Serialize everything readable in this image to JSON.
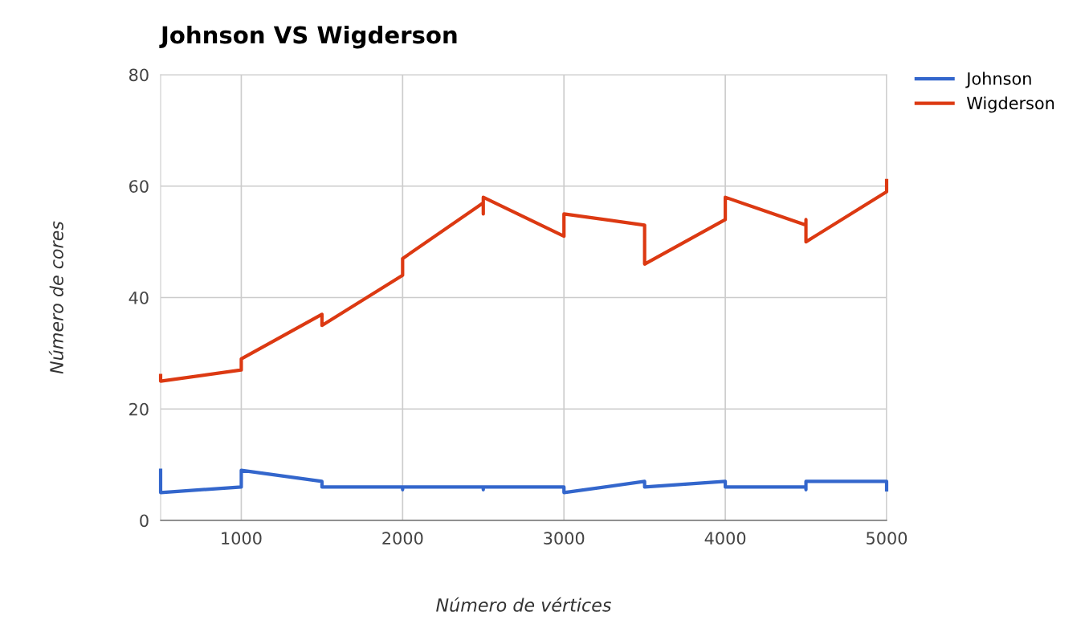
{
  "chart_data": {
    "type": "line",
    "title": "Johnson VS Wigderson",
    "xlabel": "Número de vértices",
    "ylabel": "Número de cores",
    "series": [
      {
        "name": "Johnson",
        "color": "#3366cc",
        "x": [
          500,
          500,
          1000,
          1000,
          1500,
          1500,
          2000,
          2000,
          2000,
          2500,
          2500,
          2500,
          3000,
          3000,
          3500,
          3500,
          4000,
          4000,
          4500,
          4500,
          4500,
          5000,
          5000
        ],
        "values": [
          9,
          5,
          6,
          9,
          7,
          6,
          6,
          5.5,
          6,
          6,
          5.5,
          6,
          6,
          5,
          7,
          6,
          7,
          6,
          6,
          5.5,
          7,
          7,
          5.5
        ]
      },
      {
        "name": "Wigderson",
        "color": "#dc3912",
        "x": [
          500,
          500,
          1000,
          1000,
          1500,
          1500,
          2000,
          2000,
          2500,
          2500,
          2500,
          3000,
          3000,
          3500,
          3500,
          4000,
          4000,
          4500,
          4500,
          4500,
          5000,
          5000
        ],
        "values": [
          26,
          25,
          27,
          29,
          37,
          35,
          44,
          47,
          57,
          55,
          58,
          51,
          55,
          53,
          46,
          54,
          58,
          53,
          54,
          50,
          59,
          61
        ]
      }
    ],
    "xlim": [
      500,
      5000
    ],
    "xticks": [
      1000,
      2000,
      3000,
      4000,
      5000
    ],
    "ylim": [
      0,
      80
    ],
    "yticks": [
      0,
      20,
      40,
      60,
      80
    ],
    "grid": true,
    "legend": "top right",
    "marker": "none",
    "line_style": "solid"
  }
}
